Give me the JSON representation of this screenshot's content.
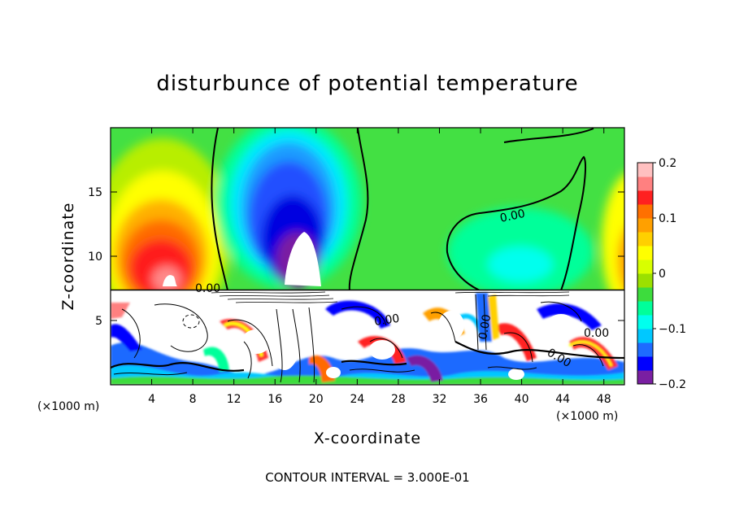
{
  "chart_data": {
    "type": "heatmap",
    "title": "disturbunce of potential temperature",
    "xlabel": "X-coordinate",
    "ylabel": "Z-coordinate",
    "x_unit": "(×1000 m)",
    "footer": "CONTOUR INTERVAL = 3.000E-01",
    "xlim": [
      0,
      50
    ],
    "ylim": [
      0,
      20
    ],
    "x_ticks": [
      4,
      8,
      12,
      16,
      20,
      24,
      28,
      32,
      36,
      40,
      44,
      48
    ],
    "y_ticks": [
      5,
      10,
      15
    ],
    "colorbar": {
      "range": [
        -0.2,
        0.2
      ],
      "tick_values": [
        0.2,
        0.1,
        0,
        -0.1,
        -0.2
      ],
      "tick_labels": [
        "0.2",
        "0.1",
        "0",
        "−0.1",
        "−0.2"
      ],
      "colors": [
        "#7a1fa2",
        "#0000ff",
        "#1e6bff",
        "#00c8ff",
        "#00ffee",
        "#00ff9a",
        "#3ddc3d",
        "#9be000",
        "#d8ff00",
        "#ffff00",
        "#ffd000",
        "#ffa000",
        "#ff7000",
        "#ff2020",
        "#ff8080",
        "#ffc0c0"
      ]
    },
    "contour_label": "0.00",
    "features": [
      {
        "kind": "warm_anomaly",
        "x": 5.5,
        "z": 12,
        "peak": 0.2
      },
      {
        "kind": "cold_anomaly",
        "x": 19,
        "z": 12,
        "peak": -0.2
      },
      {
        "kind": "weak_cold_anomaly",
        "x": 40,
        "z": 9,
        "peak": -0.05
      },
      {
        "kind": "boundary_layer_turbulence",
        "z_top": 7.4
      }
    ]
  }
}
